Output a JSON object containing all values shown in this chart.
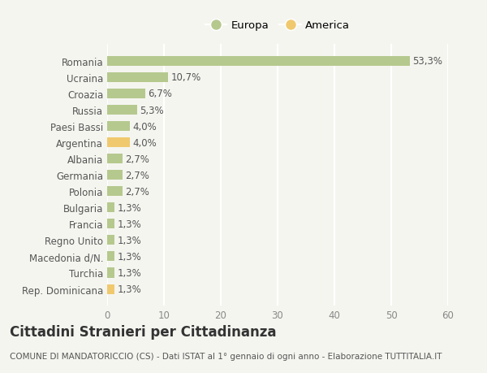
{
  "categories": [
    "Romania",
    "Ucraina",
    "Croazia",
    "Russia",
    "Paesi Bassi",
    "Argentina",
    "Albania",
    "Germania",
    "Polonia",
    "Bulgaria",
    "Francia",
    "Regno Unito",
    "Macedonia d/N.",
    "Turchia",
    "Rep. Dominicana"
  ],
  "values": [
    53.3,
    10.7,
    6.7,
    5.3,
    4.0,
    4.0,
    2.7,
    2.7,
    2.7,
    1.3,
    1.3,
    1.3,
    1.3,
    1.3,
    1.3
  ],
  "labels": [
    "53,3%",
    "10,7%",
    "6,7%",
    "5,3%",
    "4,0%",
    "4,0%",
    "2,7%",
    "2,7%",
    "2,7%",
    "1,3%",
    "1,3%",
    "1,3%",
    "1,3%",
    "1,3%",
    "1,3%"
  ],
  "colors": [
    "#b5c98e",
    "#b5c98e",
    "#b5c98e",
    "#b5c98e",
    "#b5c98e",
    "#f0c96e",
    "#b5c98e",
    "#b5c98e",
    "#b5c98e",
    "#b5c98e",
    "#b5c98e",
    "#b5c98e",
    "#b5c98e",
    "#b5c98e",
    "#f0c96e"
  ],
  "europa_color": "#b5c98e",
  "america_color": "#f0c96e",
  "legend_labels": [
    "Europa",
    "America"
  ],
  "xlim": [
    0,
    60
  ],
  "xticks": [
    0,
    10,
    20,
    30,
    40,
    50,
    60
  ],
  "title": "Cittadini Stranieri per Cittadinanza",
  "subtitle": "COMUNE DI MANDATORICCIO (CS) - Dati ISTAT al 1° gennaio di ogni anno - Elaborazione TUTTITALIA.IT",
  "background_color": "#f5f5f0",
  "grid_color": "#ffffff",
  "bar_height": 0.6,
  "label_fontsize": 8.5,
  "tick_fontsize": 8.5,
  "title_fontsize": 12,
  "subtitle_fontsize": 7.5
}
